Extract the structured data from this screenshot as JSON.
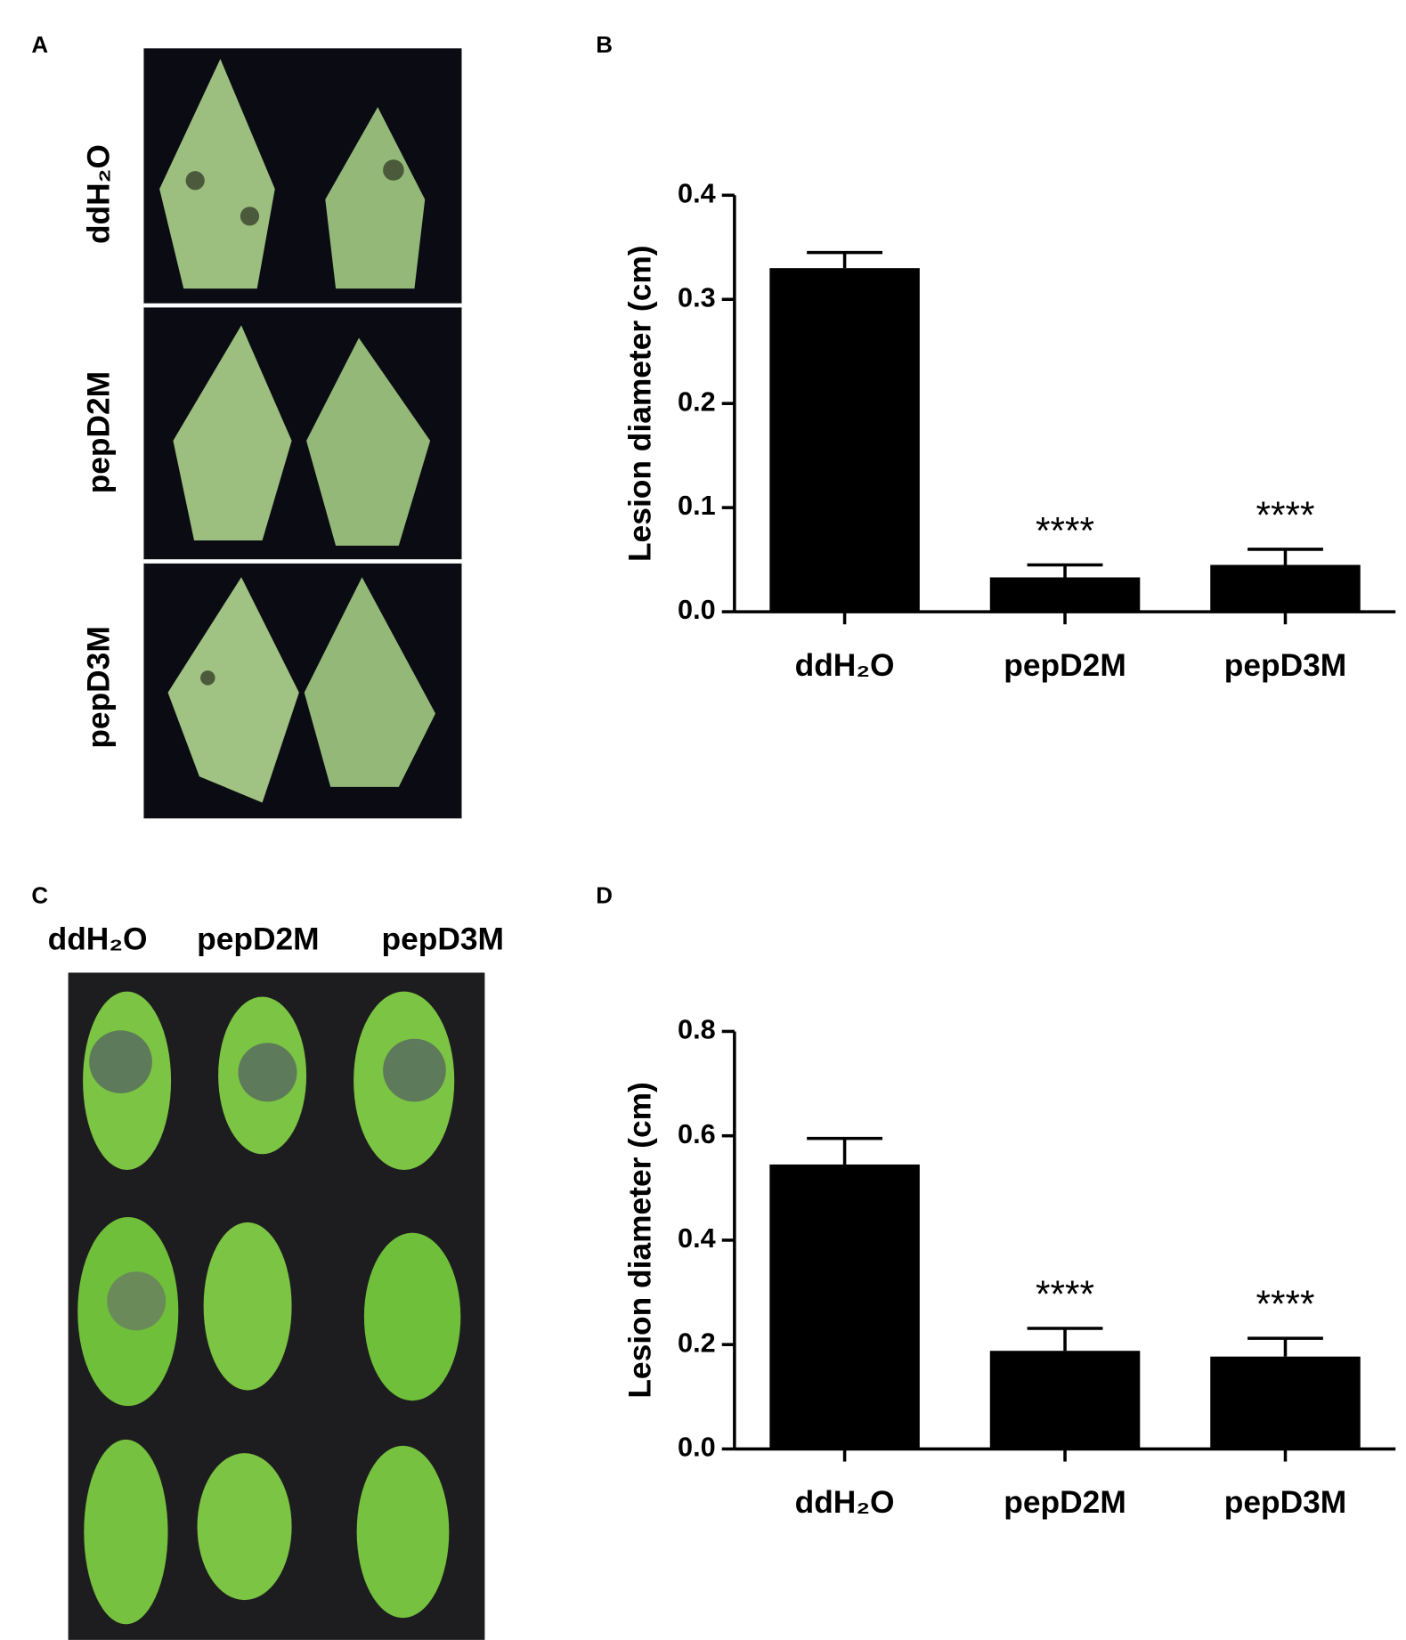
{
  "figure": {
    "panel_a": {
      "label": "A",
      "row_labels": [
        "ddH₂O",
        "pepD2M",
        "pepD3M"
      ]
    },
    "panel_c": {
      "label": "C",
      "column_labels": [
        "ddH₂O",
        "pepD2M",
        "pepD3M"
      ]
    }
  },
  "chart_data": [
    {
      "type": "bar",
      "panel_label": "B",
      "y_label": "Lesion diameter (cm)",
      "categories": [
        "ddH₂O",
        "pepD2M",
        "pepD3M"
      ],
      "values": [
        0.33,
        0.033,
        0.045
      ],
      "errors": [
        0.015,
        0.012,
        0.015
      ],
      "significance": [
        null,
        "****",
        "****"
      ],
      "color": "#000000",
      "ylim": [
        0,
        0.4
      ],
      "yticks": [
        {
          "value": 0,
          "label": "0.0"
        },
        0.1,
        0.2,
        0.3,
        0.4
      ]
    },
    {
      "type": "bar",
      "panel_label": "D",
      "y_label": "Lesion diameter (cm)",
      "categories": [
        "ddH₂O",
        "pepD2M",
        "pepD3M"
      ],
      "values": [
        0.545,
        0.188,
        0.177
      ],
      "errors": [
        0.05,
        0.043,
        0.035
      ],
      "significance": [
        null,
        "****",
        "****"
      ],
      "color": "#000000",
      "ylim": [
        0,
        0.8
      ],
      "yticks": [
        {
          "value": 0,
          "label": "0.0"
        },
        0.2,
        0.4,
        0.6,
        0.8
      ]
    }
  ]
}
